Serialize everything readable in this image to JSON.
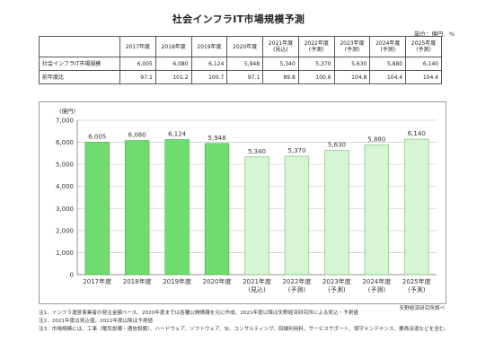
{
  "title": "社会インフラIT市場規模予測",
  "unit_note": "単位：億円、%",
  "table": {
    "headers": [
      [
        "2017年度"
      ],
      [
        "2018年度"
      ],
      [
        "2019年度"
      ],
      [
        "2020年度"
      ],
      [
        "2021年度",
        "(見込)"
      ],
      [
        "2022年度",
        "(予測)"
      ],
      [
        "2023年度",
        "(予測)"
      ],
      [
        "2024年度",
        "(予測)"
      ],
      [
        "2025年度",
        "(予測)"
      ]
    ],
    "rows": [
      {
        "label": "社会インフラIT市場規模",
        "values": [
          "6,005",
          "6,080",
          "6,124",
          "5,948",
          "5,340",
          "5,370",
          "5,630",
          "5,880",
          "6,140"
        ]
      },
      {
        "label": "前年度比",
        "values": [
          "97.1",
          "101.2",
          "100.7",
          "97.1",
          "89.8",
          "100.6",
          "104.8",
          "104.4",
          "104.4"
        ]
      }
    ]
  },
  "chart_data": {
    "type": "bar",
    "categories": [
      "2017年度",
      "2018年度",
      "2019年度",
      "2020年度",
      "2021年度",
      "2022年度",
      "2023年度",
      "2024年度",
      "2025年度"
    ],
    "category_sublabels": [
      "",
      "",
      "",
      "",
      "(見込)",
      "(予測)",
      "(予測)",
      "(予測)",
      "(予測)"
    ],
    "values": [
      6005,
      6080,
      6124,
      5948,
      5340,
      5370,
      5630,
      5880,
      6140
    ],
    "value_labels": [
      "6,005",
      "6,080",
      "6,124",
      "5,948",
      "5,340",
      "5,370",
      "5,630",
      "5,880",
      "6,140"
    ],
    "ylabel": "(億円)",
    "ylim": [
      0,
      7000
    ],
    "yticks": [
      0,
      1000,
      2000,
      3000,
      4000,
      5000,
      6000,
      7000
    ],
    "ytick_labels": [
      "0",
      "1,000",
      "2,000",
      "3,000",
      "4,000",
      "5,000",
      "6,000",
      "7,000"
    ],
    "grid": true,
    "colors": {
      "actual_fill": "#6edc6e",
      "actual_stroke": "#4fb34f",
      "forecast_fill": "#d5f5d5",
      "forecast_stroke": "#7cc47c",
      "grid": "#cfcfcf",
      "axis": "#777777"
    },
    "actual_count": 4
  },
  "source": "矢野経済研究所調べ",
  "notes": [
    "注1．インフラ運営事業者の発注金額ベース、2020年度までは各種公開情報を元に作成、2021年度以降は矢野経済研究所による見込・予測値",
    "注2．2021年度は見込値、2022年度以降は予測値",
    "注3．市場規模には、工事（電気設備・通信設備）、ハードウェア、ソフトウェア、SI、コンサルティング、回線利用料、サービスサポート、保守メンテナンス、要員派遣などを含む。"
  ]
}
